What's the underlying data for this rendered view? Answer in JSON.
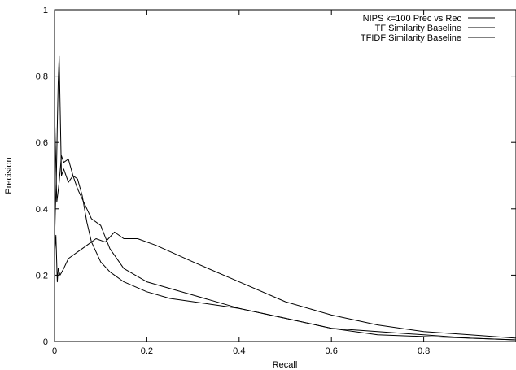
{
  "chart_data": {
    "type": "line",
    "xlabel": "Recall",
    "ylabel": "Precision",
    "xlim": [
      0,
      1
    ],
    "ylim": [
      0,
      1
    ],
    "x_ticks": [
      "0",
      "0.2",
      "0.4",
      "0.6",
      "0.8"
    ],
    "x_tick_values": [
      0,
      0.2,
      0.4,
      0.6,
      0.8
    ],
    "y_ticks": [
      "0",
      "0.2",
      "0.4",
      "0.6",
      "0.8",
      "1"
    ],
    "y_tick_values": [
      0,
      0.2,
      0.4,
      0.6,
      0.8,
      1
    ],
    "grid": false,
    "legend_position": "top-right",
    "series": [
      {
        "name": "NIPS k=100 Prec vs Rec",
        "x": [
          0,
          0.003,
          0.006,
          0.008,
          0.012,
          0.02,
          0.03,
          0.04,
          0.05,
          0.06,
          0.07,
          0.09,
          0.11,
          0.13,
          0.15,
          0.18,
          0.22,
          0.3,
          0.4,
          0.5,
          0.6,
          0.7,
          0.8,
          0.9,
          1.0
        ],
        "y": [
          0.26,
          0.32,
          0.18,
          0.22,
          0.2,
          0.22,
          0.25,
          0.26,
          0.27,
          0.28,
          0.29,
          0.31,
          0.3,
          0.33,
          0.31,
          0.31,
          0.29,
          0.24,
          0.18,
          0.12,
          0.08,
          0.05,
          0.03,
          0.02,
          0.01
        ]
      },
      {
        "name": "TF Similarity Baseline",
        "x": [
          0,
          0.002,
          0.004,
          0.006,
          0.008,
          0.01,
          0.015,
          0.02,
          0.03,
          0.04,
          0.05,
          0.06,
          0.07,
          0.08,
          0.1,
          0.12,
          0.15,
          0.2,
          0.3,
          0.4,
          0.5,
          0.6,
          0.7,
          0.8,
          0.9,
          1.0
        ],
        "y": [
          0.3,
          0.4,
          0.5,
          0.65,
          0.78,
          0.86,
          0.5,
          0.52,
          0.48,
          0.5,
          0.46,
          0.43,
          0.4,
          0.37,
          0.35,
          0.28,
          0.22,
          0.18,
          0.14,
          0.1,
          0.07,
          0.04,
          0.03,
          0.02,
          0.01,
          0.005
        ]
      },
      {
        "name": "TFIDF Similarity Baseline",
        "x": [
          0,
          0.005,
          0.01,
          0.015,
          0.02,
          0.03,
          0.04,
          0.05,
          0.06,
          0.07,
          0.08,
          0.1,
          0.12,
          0.15,
          0.2,
          0.25,
          0.3,
          0.4,
          0.5,
          0.6,
          0.7,
          0.8,
          0.9,
          1.0
        ],
        "y": [
          0.7,
          0.42,
          0.48,
          0.56,
          0.54,
          0.55,
          0.5,
          0.49,
          0.44,
          0.36,
          0.3,
          0.24,
          0.21,
          0.18,
          0.15,
          0.13,
          0.12,
          0.1,
          0.07,
          0.04,
          0.02,
          0.015,
          0.01,
          0.005
        ]
      }
    ]
  }
}
